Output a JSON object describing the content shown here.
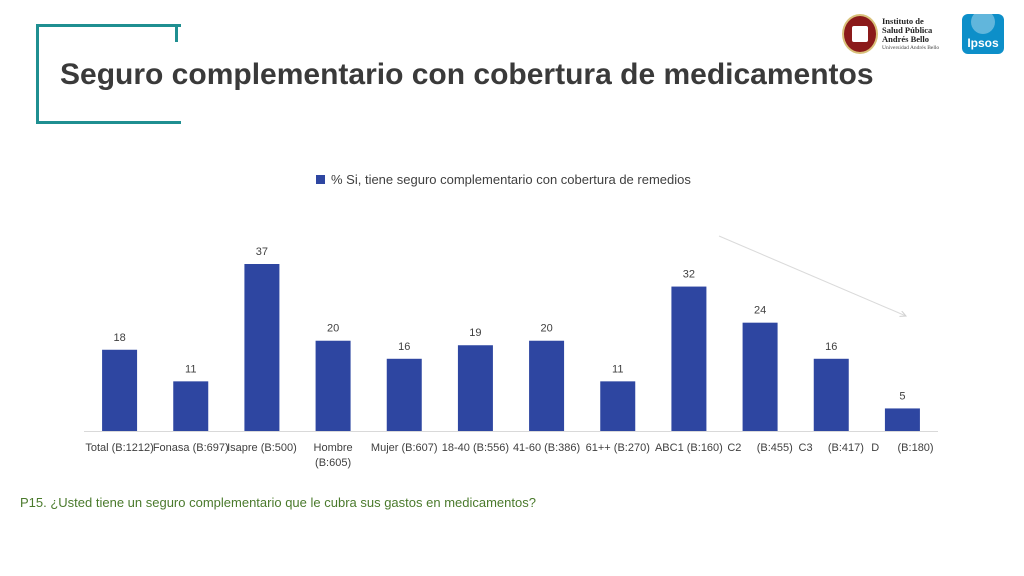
{
  "header": {
    "title": "Seguro complementario con cobertura de medicamentos"
  },
  "logos": {
    "institute_lines": [
      "Instituto de",
      "Salud Pública",
      "Andrés Bello"
    ],
    "institute_sub": "Universidad Andrés Bello",
    "ipsos": "Ipsos"
  },
  "colors": {
    "bar": "#2e46a1",
    "accent_frame": "#1f8f91",
    "footnote": "#4a7a2c"
  },
  "chart_data": {
    "type": "bar",
    "categories": [
      [
        "Total (B:1212)"
      ],
      [
        "Fonasa (B:697)"
      ],
      [
        "Isapre (B:500)"
      ],
      [
        "Hombre",
        "(B:605)"
      ],
      [
        "Mujer (B:607)"
      ],
      [
        "18-40 (B:556)"
      ],
      [
        "41-60 (B:386)"
      ],
      [
        "61++ (B:270)"
      ],
      [
        "ABC1 (B:160)"
      ],
      [
        "C2     (B:455)"
      ],
      [
        "C3     (B:417)"
      ],
      [
        "D      (B:180)"
      ]
    ],
    "series": [
      {
        "name": "% Si, tiene seguro complementario con cobertura de remedios",
        "values": [
          18,
          11,
          37,
          20,
          16,
          19,
          20,
          11,
          32,
          24,
          16,
          5
        ]
      }
    ],
    "data_labels": true,
    "legend_position": "top",
    "grid": false,
    "ylim": [
      0,
      37
    ]
  },
  "footnote": "P15. ¿Usted tiene un seguro complementario que le cubra sus gastos en medicamentos?"
}
